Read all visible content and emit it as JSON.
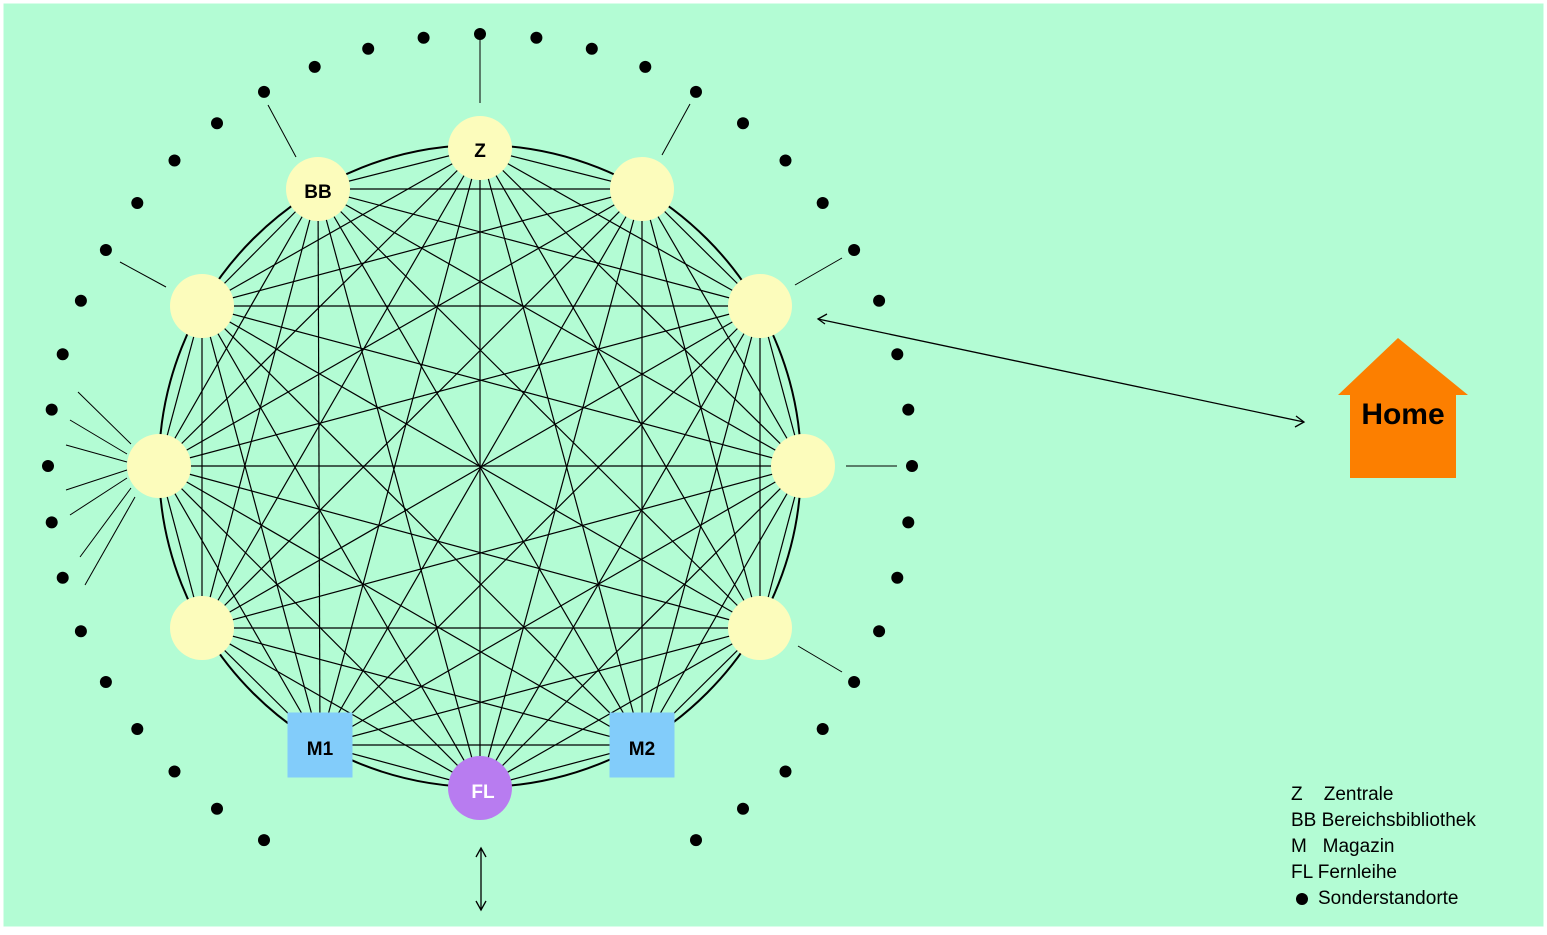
{
  "colors": {
    "background": "#b3fcd4",
    "node": "#fcfcbc",
    "magazin": "#82ccfa",
    "fernleihe": "#b87cf0",
    "home": "#fc7f00",
    "dots": "#000000",
    "lines": "#000000"
  },
  "nodes": {
    "zentrale": "Z",
    "bereichsbibliothek": "BB",
    "magazin1": "M1",
    "magazin2": "M2",
    "fernleihe": "FL"
  },
  "home": {
    "label": "Home",
    "icon": "house-icon"
  },
  "legend": [
    {
      "key": "Z",
      "text": "Z    Zentrale"
    },
    {
      "key": "BB",
      "text": "BB Bereichsbibliothek"
    },
    {
      "key": "M",
      "text": "M   Magazin"
    },
    {
      "key": "FL",
      "text": "FL Fernleihe"
    },
    {
      "key": "dot",
      "text": "Sonderstandorte",
      "icon": "bullet-icon"
    }
  ]
}
